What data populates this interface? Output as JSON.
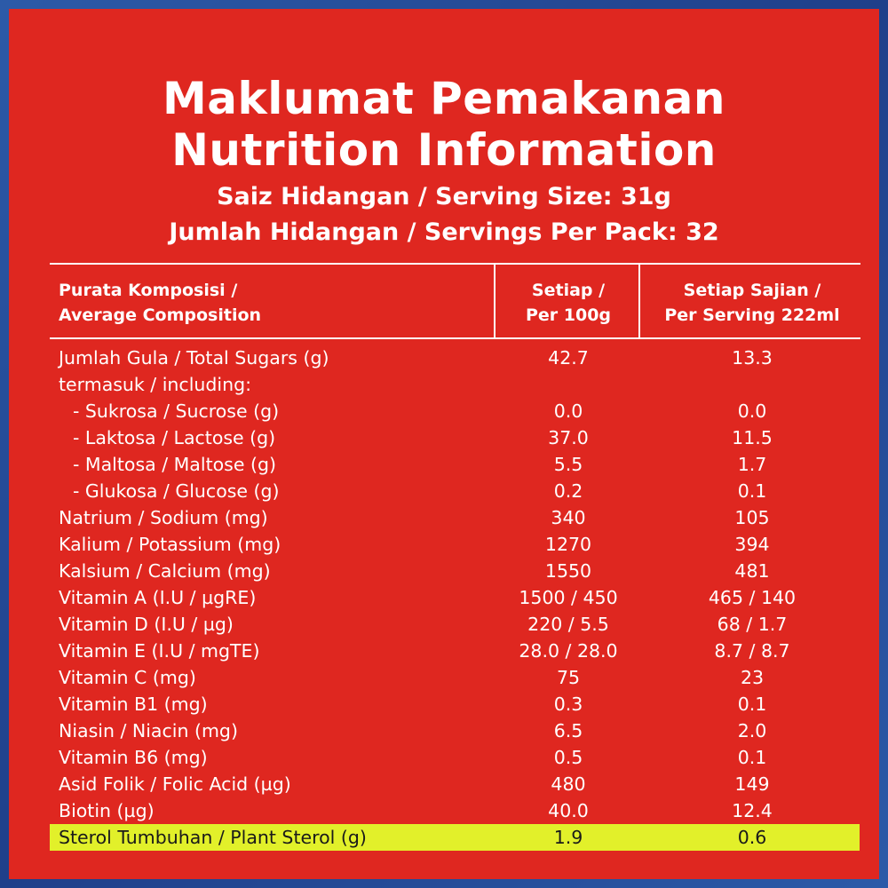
{
  "title": {
    "line1": "Maklumat Pemakanan",
    "line2": "Nutrition Information"
  },
  "serving_size": "Saiz Hidangan / Serving Size: 31g",
  "servings_per_pack": "Jumlah Hidangan / Servings Per Pack: 32",
  "table": {
    "headers": {
      "col1": [
        "Purata Komposisi /",
        "Average Composition"
      ],
      "col2": [
        "Setiap /",
        "Per 100g"
      ],
      "col3": [
        "Setiap Sajian /",
        "Per Serving 222ml"
      ]
    },
    "rows": [
      {
        "label": "Jumlah Gula / Total Sugars (g)",
        "per100": "42.7",
        "serving": "13.3"
      },
      {
        "label": "termasuk / including:",
        "per100": "",
        "serving": ""
      },
      {
        "label": "- Sukrosa / Sucrose (g)",
        "per100": "0.0",
        "serving": "0.0",
        "indent": true
      },
      {
        "label": "- Laktosa / Lactose (g)",
        "per100": "37.0",
        "serving": "11.5",
        "indent": true
      },
      {
        "label": "- Maltosa / Maltose (g)",
        "per100": "5.5",
        "serving": "1.7",
        "indent": true
      },
      {
        "label": "- Glukosa / Glucose (g)",
        "per100": "0.2",
        "serving": "0.1",
        "indent": true
      },
      {
        "label": "Natrium / Sodium (mg)",
        "per100": "340",
        "serving": "105"
      },
      {
        "label": "Kalium / Potassium (mg)",
        "per100": "1270",
        "serving": "394"
      },
      {
        "label": "Kalsium / Calcium (mg)",
        "per100": "1550",
        "serving": "481"
      },
      {
        "label": "Vitamin A (I.U / µgRE)",
        "per100": "1500 / 450",
        "serving": "465 / 140"
      },
      {
        "label": "Vitamin D (I.U / µg)",
        "per100": "220 / 5.5",
        "serving": "68 / 1.7"
      },
      {
        "label": "Vitamin E (I.U / mgTE)",
        "per100": "28.0 / 28.0",
        "serving": "8.7 / 8.7"
      },
      {
        "label": "Vitamin C (mg)",
        "per100": "75",
        "serving": "23"
      },
      {
        "label": "Vitamin B1 (mg)",
        "per100": "0.3",
        "serving": "0.1"
      },
      {
        "label": "Niasin / Niacin (mg)",
        "per100": "6.5",
        "serving": "2.0"
      },
      {
        "label": "Vitamin B6 (mg)",
        "per100": "0.5",
        "serving": "0.1"
      },
      {
        "label": "Asid Folik / Folic Acid (µg)",
        "per100": "480",
        "serving": "149"
      },
      {
        "label": "Biotin (µg)",
        "per100": "40.0",
        "serving": "12.4"
      },
      {
        "label": "Sterol Tumbuhan / Plant Sterol (g)",
        "per100": "1.9",
        "serving": "0.6",
        "highlight": true
      }
    ]
  },
  "colors": {
    "panel_bg": "#df2720",
    "border_blue": "#2c5aa8",
    "highlight": "#e2f02a",
    "text": "#ffffff"
  }
}
